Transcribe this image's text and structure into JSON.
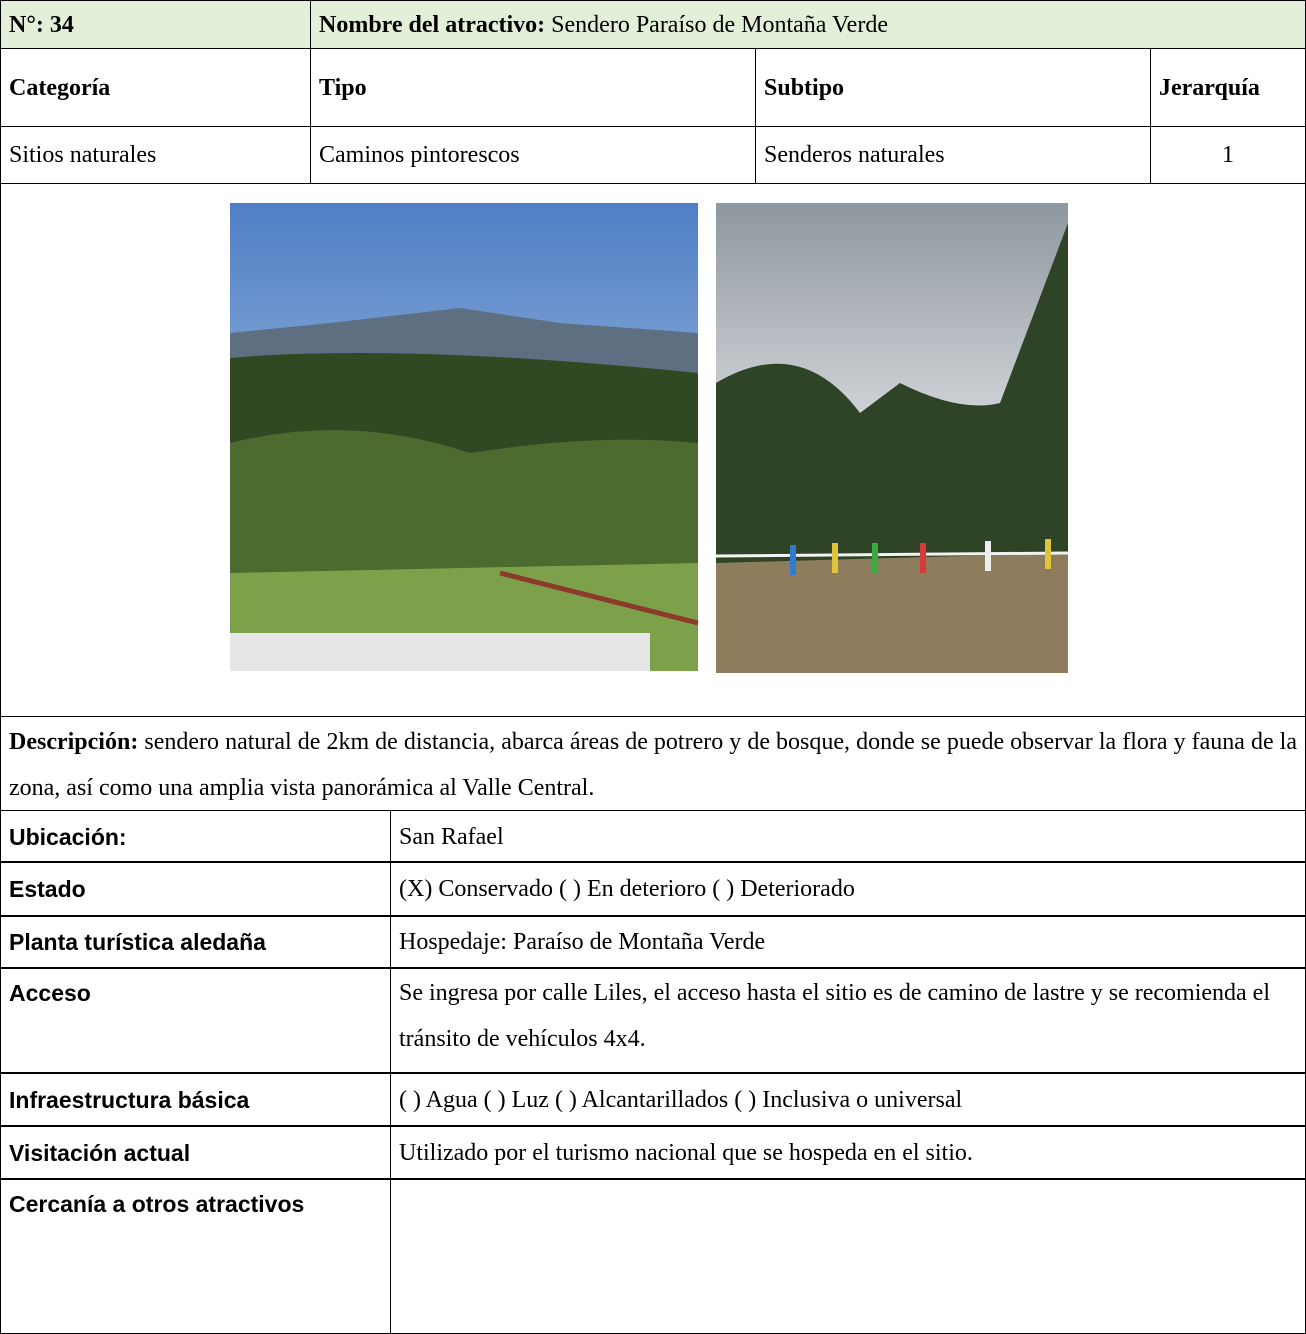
{
  "header": {
    "number": "N°: 34",
    "name_label": "Nombre del atractivo:",
    "name": "Sendero Paraíso de Montaña Verde"
  },
  "classification": {
    "headers": [
      "Categoría",
      "Tipo",
      "Subtipo",
      "Jerarquía"
    ],
    "values": [
      "Sitios naturales",
      "Caminos pintorescos",
      "Senderos naturales",
      1
    ]
  },
  "description": {
    "label": "Descripción:",
    "text": "sendero natural de 2km de distancia, abarca áreas de potrero y de bosque, donde se puede observar la flora y fauna de la zona, así como una amplia vista panorámica al Valle Central."
  },
  "details": [
    {
      "label": "Ubicación:",
      "value": "San Rafael"
    },
    {
      "label": "Estado",
      "value": "(X) Conservado ( ) En deterioro ( ) Deteriorado"
    },
    {
      "label": "Planta turística aledaña",
      "value": "Hospedaje: Paraíso de Montaña Verde"
    },
    {
      "label": "Acceso",
      "value": "Se ingresa por calle Liles, el acceso hasta el sitio es de camino de lastre y se recomienda el tránsito de vehículos 4x4."
    },
    {
      "label": "Infraestructura básica",
      "value": "( ) Agua ( ) Luz ( ) Alcantarillados ( ) Inclusiva o universal"
    },
    {
      "label": "Visitación actual",
      "value": "Utilizado por el turismo nacional que se hospeda en el sitio."
    },
    {
      "label": "Cercanía a otros atractivos"
    }
  ]
}
